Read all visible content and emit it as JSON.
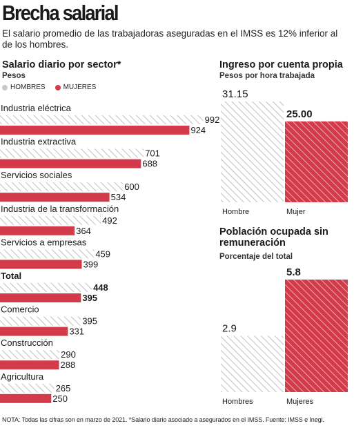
{
  "header": {
    "title": "Brecha salarial",
    "subtitle": "El salario promedio de las trabajadoras aseguradas en el IMSS es 12% inferior al de los hombres."
  },
  "colors": {
    "hombres": "#c8c8c8",
    "mujeres": "#d33a4a",
    "text": "#1a1a1a"
  },
  "note": "NOTA: Todas las cifras son en marzo de 2021. *Salario diario asociado a asegurados en el IMSS. Fuente: IMSS e Inegi.",
  "chart_data": [
    {
      "type": "bar",
      "orientation": "horizontal",
      "title": "Salario diario por sector*",
      "subtitle": "Pesos",
      "legend": [
        "HOMBRES",
        "MUJERES"
      ],
      "legend_position": "top-left",
      "categories": [
        "Industria eléctrica",
        "Industria extractiva",
        "Servicios sociales",
        "Industria de la transformación",
        "Servicios a empresas",
        "Total",
        "Comercio",
        "Construcción",
        "Agricultura"
      ],
      "series": [
        {
          "name": "HOMBRES",
          "values": [
            992,
            701,
            600,
            492,
            459,
            448,
            395,
            290,
            265
          ]
        },
        {
          "name": "MUJERES",
          "values": [
            924,
            688,
            534,
            364,
            399,
            395,
            331,
            288,
            250
          ]
        }
      ],
      "xlim": [
        0,
        1010
      ]
    },
    {
      "type": "bar",
      "title": "Ingreso por cuenta propia",
      "subtitle": "Pesos por hora trabajada",
      "categories": [
        "Hombre",
        "Mujer"
      ],
      "values": [
        31.15,
        25.0
      ],
      "labels": [
        "31.15",
        "25.00"
      ]
    },
    {
      "type": "bar",
      "title": "Población ocupada sin remuneración",
      "subtitle": "Porcentaje del total",
      "categories": [
        "Hombres",
        "Mujeres"
      ],
      "values": [
        2.9,
        5.8
      ],
      "labels": [
        "2.9",
        "5.8"
      ]
    }
  ]
}
